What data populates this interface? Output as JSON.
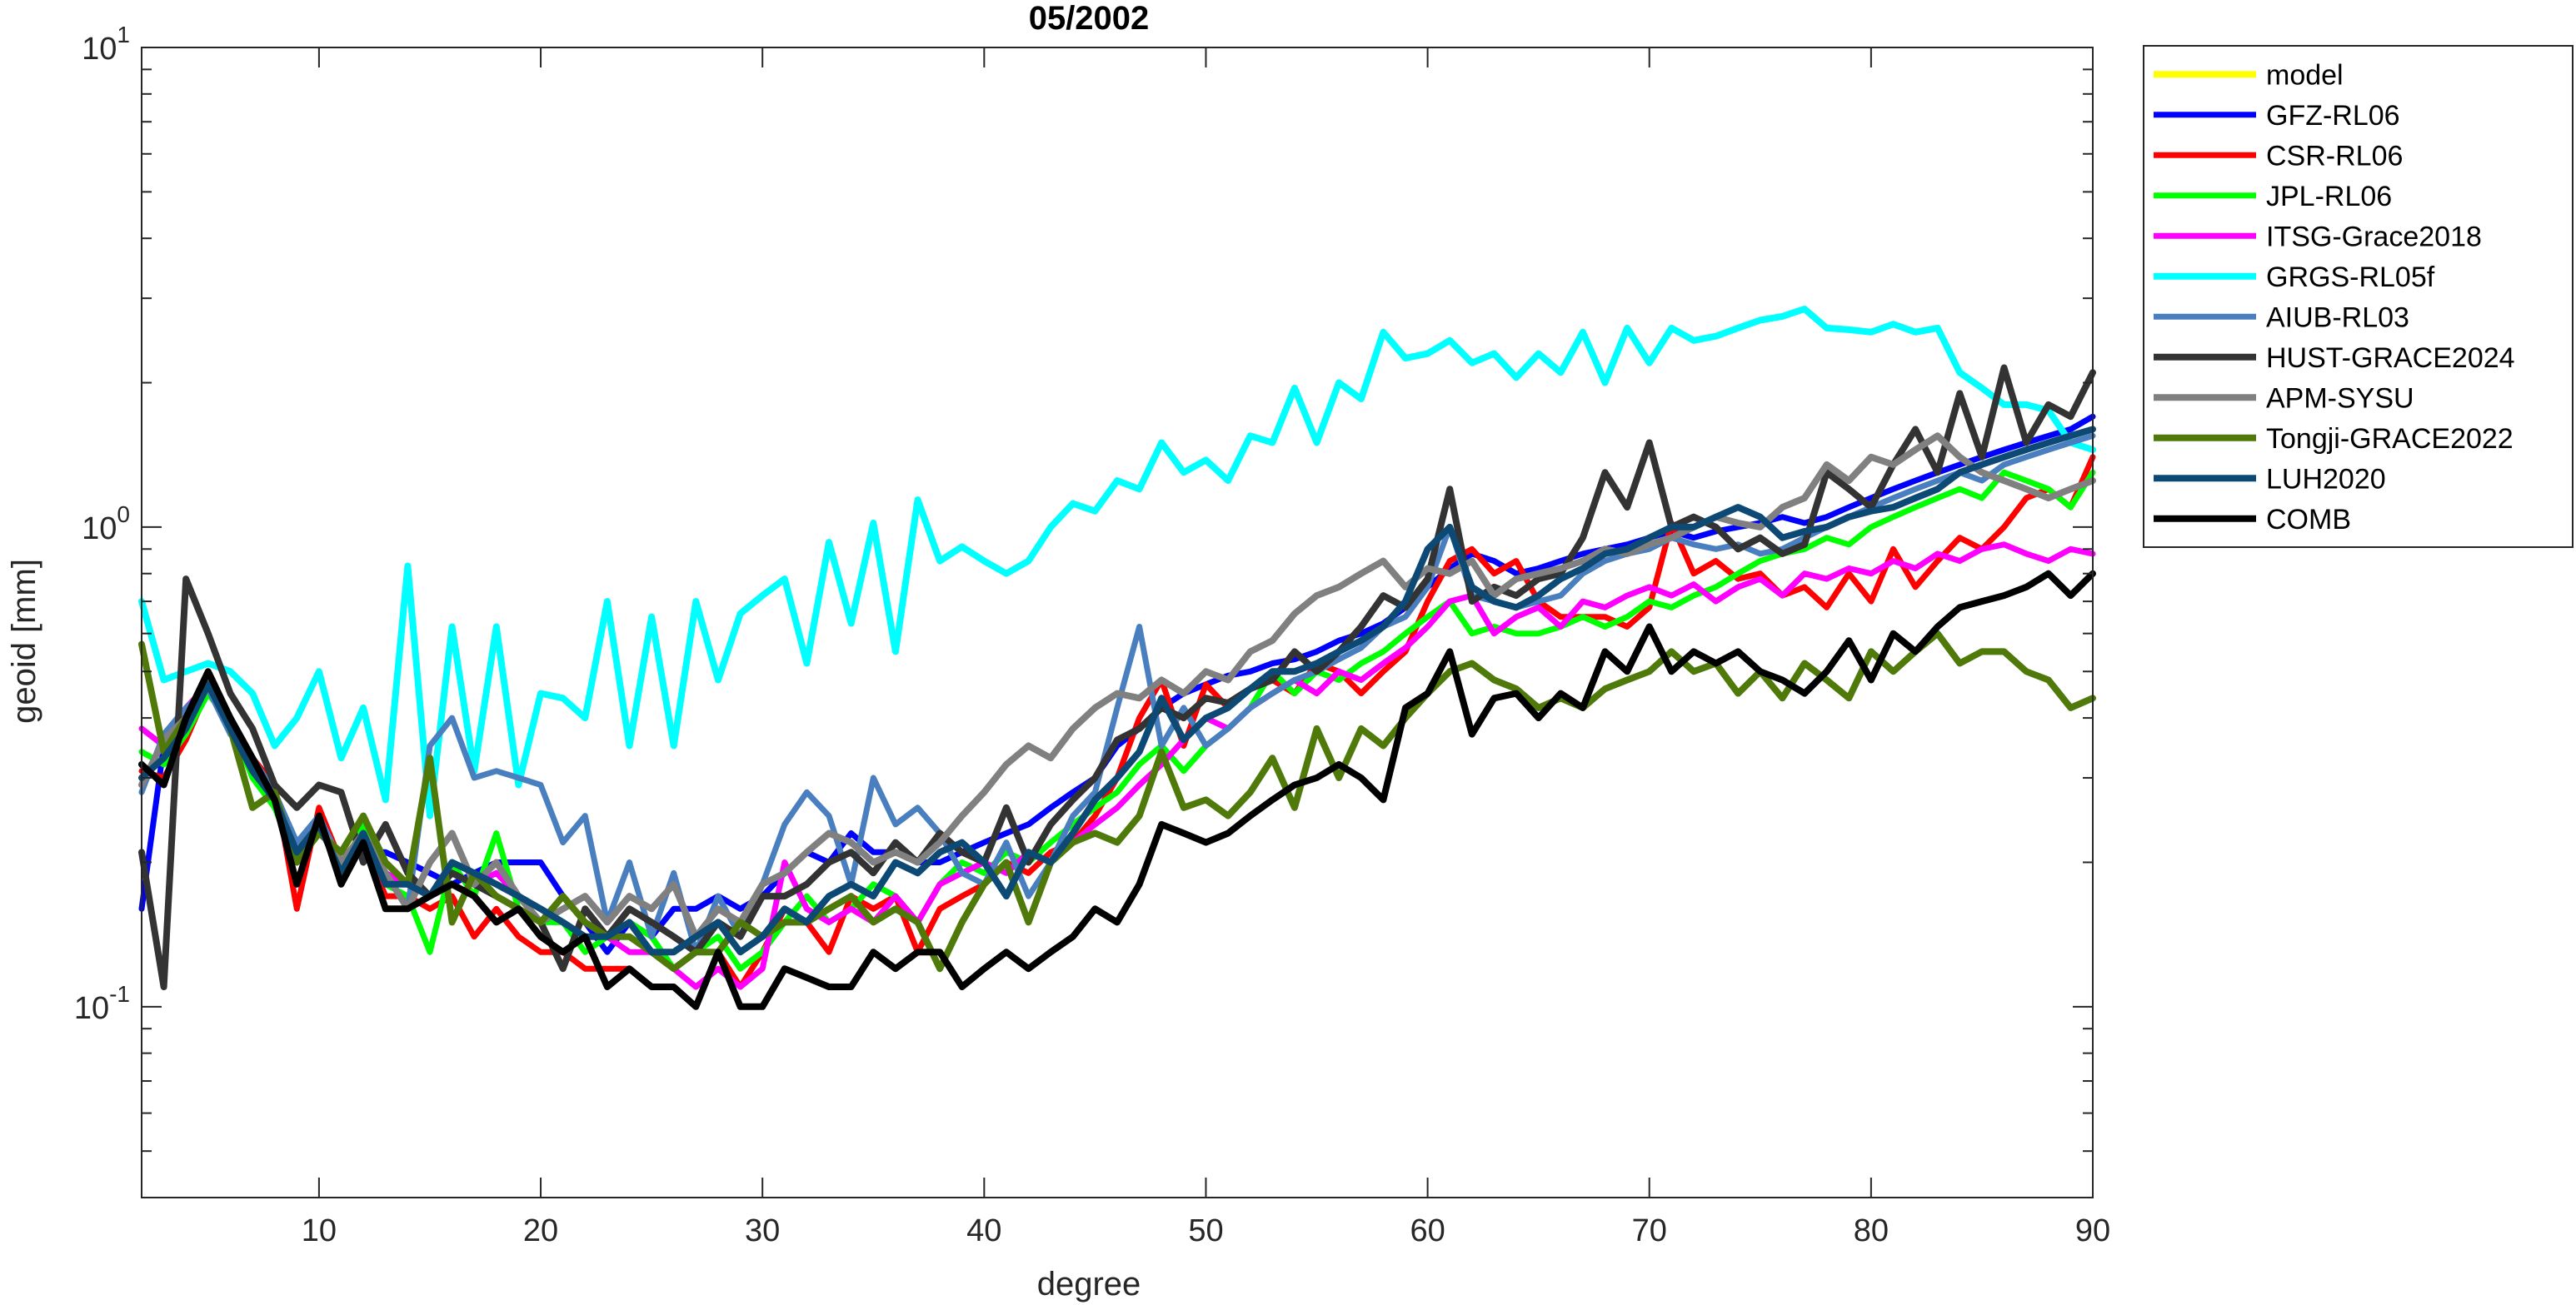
{
  "chart_data": {
    "type": "line",
    "title": "05/2002",
    "xlabel": "degree",
    "ylabel": "geoid [mm]",
    "xlim": [
      2,
      90
    ],
    "ylim": [
      0.04,
      10
    ],
    "yscale": "log",
    "xticks": [
      10,
      20,
      30,
      40,
      50,
      60,
      70,
      80,
      90
    ],
    "xtick_labels": [
      "10",
      "20",
      "30",
      "40",
      "50",
      "60",
      "70",
      "80",
      "90"
    ],
    "yticks": [
      {
        "value": 0.1,
        "base": "10",
        "exp": "-1"
      },
      {
        "value": 1,
        "base": "10",
        "exp": "0"
      },
      {
        "value": 10,
        "base": "10",
        "exp": "1"
      }
    ],
    "grid": false,
    "legend_position": "outside-top-right",
    "series": [
      {
        "name": "model",
        "color": "#ffff00",
        "width": 8,
        "x0": 2,
        "values": []
      },
      {
        "name": "GFZ-RL06",
        "color": "#0000ff",
        "width": 7,
        "x0": 2,
        "values": [
          0.16,
          0.35,
          0.38,
          0.49,
          0.4,
          0.33,
          0.28,
          0.2,
          0.24,
          0.2,
          0.21,
          0.21,
          0.2,
          0.19,
          0.18,
          0.19,
          0.2,
          0.2,
          0.2,
          0.17,
          0.15,
          0.13,
          0.15,
          0.14,
          0.16,
          0.16,
          0.17,
          0.16,
          0.17,
          0.19,
          0.21,
          0.2,
          0.23,
          0.21,
          0.21,
          0.2,
          0.2,
          0.21,
          0.22,
          0.23,
          0.24,
          0.26,
          0.28,
          0.3,
          0.35,
          0.38,
          0.42,
          0.45,
          0.47,
          0.49,
          0.5,
          0.52,
          0.53,
          0.55,
          0.58,
          0.6,
          0.63,
          0.68,
          0.75,
          0.82,
          0.88,
          0.85,
          0.8,
          0.82,
          0.85,
          0.88,
          0.9,
          0.92,
          0.95,
          0.98,
          0.95,
          0.98,
          1.0,
          1.02,
          1.05,
          1.02,
          1.05,
          1.1,
          1.15,
          1.2,
          1.25,
          1.3,
          1.35,
          1.4,
          1.45,
          1.5,
          1.55,
          1.6,
          1.7
        ]
      },
      {
        "name": "CSR-RL06",
        "color": "#ff0000",
        "width": 7,
        "x0": 2,
        "values": [
          0.31,
          0.3,
          0.36,
          0.46,
          0.38,
          0.33,
          0.29,
          0.16,
          0.26,
          0.2,
          0.22,
          0.17,
          0.17,
          0.16,
          0.17,
          0.14,
          0.16,
          0.14,
          0.13,
          0.13,
          0.12,
          0.12,
          0.12,
          0.11,
          0.11,
          0.1,
          0.13,
          0.11,
          0.13,
          0.16,
          0.15,
          0.13,
          0.17,
          0.16,
          0.17,
          0.13,
          0.16,
          0.17,
          0.18,
          0.2,
          0.19,
          0.21,
          0.22,
          0.25,
          0.3,
          0.4,
          0.48,
          0.35,
          0.47,
          0.42,
          0.46,
          0.48,
          0.45,
          0.52,
          0.5,
          0.45,
          0.5,
          0.55,
          0.7,
          0.85,
          0.9,
          0.8,
          0.85,
          0.7,
          0.65,
          0.65,
          0.65,
          0.62,
          0.68,
          1.02,
          0.8,
          0.85,
          0.78,
          0.8,
          0.72,
          0.75,
          0.68,
          0.8,
          0.7,
          0.9,
          0.75,
          0.85,
          0.95,
          0.9,
          1.0,
          1.15,
          1.2,
          1.1,
          1.4
        ]
      },
      {
        "name": "JPL-RL06",
        "color": "#00ff00",
        "width": 7,
        "x0": 2,
        "values": [
          0.34,
          0.32,
          0.37,
          0.45,
          0.39,
          0.3,
          0.26,
          0.2,
          0.25,
          0.19,
          0.24,
          0.18,
          0.17,
          0.13,
          0.2,
          0.17,
          0.23,
          0.16,
          0.15,
          0.15,
          0.13,
          0.14,
          0.15,
          0.14,
          0.12,
          0.13,
          0.14,
          0.12,
          0.13,
          0.15,
          0.17,
          0.15,
          0.16,
          0.18,
          0.17,
          0.15,
          0.18,
          0.2,
          0.19,
          0.21,
          0.2,
          0.22,
          0.24,
          0.26,
          0.28,
          0.32,
          0.35,
          0.31,
          0.35,
          0.38,
          0.42,
          0.5,
          0.45,
          0.5,
          0.48,
          0.52,
          0.55,
          0.6,
          0.65,
          0.7,
          0.6,
          0.62,
          0.6,
          0.6,
          0.62,
          0.65,
          0.62,
          0.65,
          0.7,
          0.68,
          0.72,
          0.75,
          0.8,
          0.85,
          0.88,
          0.9,
          0.95,
          0.92,
          1.0,
          1.05,
          1.1,
          1.15,
          1.2,
          1.15,
          1.3,
          1.25,
          1.2,
          1.1,
          1.3
        ]
      },
      {
        "name": "ITSG-Grace2018",
        "color": "#ff00ff",
        "width": 7,
        "x0": 2,
        "values": [
          0.38,
          0.35,
          0.42,
          0.47,
          0.4,
          0.33,
          0.27,
          0.21,
          0.24,
          0.2,
          0.22,
          0.19,
          0.18,
          0.17,
          0.19,
          0.18,
          0.19,
          0.17,
          0.16,
          0.15,
          0.14,
          0.14,
          0.13,
          0.13,
          0.12,
          0.11,
          0.12,
          0.11,
          0.12,
          0.2,
          0.16,
          0.15,
          0.16,
          0.15,
          0.17,
          0.15,
          0.18,
          0.19,
          0.2,
          0.19,
          0.21,
          0.2,
          0.22,
          0.24,
          0.26,
          0.29,
          0.32,
          0.36,
          0.4,
          0.38,
          0.42,
          0.45,
          0.48,
          0.45,
          0.5,
          0.48,
          0.52,
          0.56,
          0.62,
          0.7,
          0.72,
          0.6,
          0.65,
          0.68,
          0.62,
          0.7,
          0.68,
          0.72,
          0.75,
          0.72,
          0.76,
          0.7,
          0.75,
          0.78,
          0.72,
          0.8,
          0.78,
          0.82,
          0.8,
          0.85,
          0.82,
          0.88,
          0.85,
          0.9,
          0.92,
          0.88,
          0.85,
          0.9,
          0.88
        ]
      },
      {
        "name": "GRGS-RL05f",
        "color": "#00ffff",
        "width": 8,
        "x0": 2,
        "values": [
          0.7,
          0.48,
          0.5,
          0.52,
          0.5,
          0.45,
          0.35,
          0.4,
          0.5,
          0.33,
          0.42,
          0.27,
          0.83,
          0.25,
          0.62,
          0.31,
          0.62,
          0.29,
          0.45,
          0.44,
          0.4,
          0.7,
          0.35,
          0.65,
          0.35,
          0.7,
          0.48,
          0.66,
          0.72,
          0.78,
          0.52,
          0.93,
          0.63,
          1.02,
          0.55,
          1.14,
          0.85,
          0.91,
          0.85,
          0.8,
          0.85,
          1.0,
          1.12,
          1.08,
          1.25,
          1.2,
          1.5,
          1.3,
          1.38,
          1.25,
          1.55,
          1.5,
          1.95,
          1.5,
          2.0,
          1.85,
          2.55,
          2.25,
          2.3,
          2.45,
          2.2,
          2.3,
          2.05,
          2.3,
          2.1,
          2.55,
          2.0,
          2.6,
          2.2,
          2.6,
          2.45,
          2.5,
          2.6,
          2.7,
          2.75,
          2.85,
          2.6,
          2.58,
          2.55,
          2.65,
          2.55,
          2.6,
          2.1,
          1.95,
          1.8,
          1.8,
          1.75,
          1.5,
          1.45
        ]
      },
      {
        "name": "AIUB-RL03",
        "color": "#4a7fbf",
        "width": 7,
        "x0": 2,
        "values": [
          0.28,
          0.37,
          0.42,
          0.46,
          0.37,
          0.33,
          0.28,
          0.22,
          0.25,
          0.2,
          0.22,
          0.19,
          0.16,
          0.35,
          0.4,
          0.3,
          0.31,
          0.3,
          0.29,
          0.22,
          0.25,
          0.15,
          0.2,
          0.14,
          0.19,
          0.13,
          0.17,
          0.14,
          0.18,
          0.24,
          0.28,
          0.25,
          0.18,
          0.3,
          0.24,
          0.26,
          0.23,
          0.19,
          0.18,
          0.22,
          0.17,
          0.2,
          0.25,
          0.28,
          0.42,
          0.62,
          0.35,
          0.42,
          0.35,
          0.38,
          0.42,
          0.45,
          0.48,
          0.5,
          0.53,
          0.56,
          0.62,
          0.65,
          0.75,
          1.0,
          0.72,
          0.7,
          0.68,
          0.7,
          0.72,
          0.8,
          0.85,
          0.88,
          0.9,
          0.95,
          0.92,
          0.9,
          0.92,
          0.88,
          0.9,
          0.95,
          1.0,
          1.05,
          1.1,
          1.15,
          1.2,
          1.25,
          1.3,
          1.25,
          1.35,
          1.4,
          1.45,
          1.5,
          1.55
        ]
      },
      {
        "name": "HUST-GRACE2024",
        "color": "#333333",
        "width": 8,
        "x0": 2,
        "values": [
          0.21,
          0.11,
          0.78,
          0.6,
          0.45,
          0.38,
          0.29,
          0.26,
          0.29,
          0.28,
          0.2,
          0.24,
          0.19,
          0.17,
          0.19,
          0.18,
          0.17,
          0.16,
          0.15,
          0.12,
          0.16,
          0.14,
          0.16,
          0.15,
          0.14,
          0.13,
          0.15,
          0.14,
          0.17,
          0.17,
          0.18,
          0.2,
          0.21,
          0.19,
          0.22,
          0.2,
          0.23,
          0.21,
          0.2,
          0.26,
          0.2,
          0.24,
          0.27,
          0.3,
          0.36,
          0.38,
          0.42,
          0.4,
          0.44,
          0.43,
          0.46,
          0.48,
          0.55,
          0.5,
          0.55,
          0.62,
          0.72,
          0.68,
          0.78,
          1.2,
          0.7,
          0.75,
          0.72,
          0.78,
          0.8,
          0.95,
          1.3,
          1.1,
          1.5,
          1.0,
          1.05,
          1.0,
          0.9,
          0.95,
          0.88,
          0.92,
          1.3,
          1.2,
          1.1,
          1.35,
          1.6,
          1.3,
          1.9,
          1.4,
          2.15,
          1.5,
          1.8,
          1.7,
          2.1
        ]
      },
      {
        "name": "APM-SYSU",
        "color": "#808080",
        "width": 8,
        "x0": 2,
        "values": [
          0.29,
          0.36,
          0.4,
          0.47,
          0.38,
          0.32,
          0.27,
          0.21,
          0.24,
          0.2,
          0.23,
          0.19,
          0.16,
          0.2,
          0.23,
          0.18,
          0.2,
          0.17,
          0.15,
          0.16,
          0.17,
          0.15,
          0.17,
          0.16,
          0.18,
          0.14,
          0.16,
          0.15,
          0.18,
          0.19,
          0.21,
          0.23,
          0.22,
          0.2,
          0.21,
          0.2,
          0.22,
          0.25,
          0.28,
          0.32,
          0.35,
          0.33,
          0.38,
          0.42,
          0.45,
          0.44,
          0.48,
          0.45,
          0.5,
          0.48,
          0.55,
          0.58,
          0.66,
          0.72,
          0.75,
          0.8,
          0.85,
          0.75,
          0.82,
          0.8,
          0.85,
          0.72,
          0.78,
          0.8,
          0.82,
          0.85,
          0.9,
          0.88,
          0.92,
          0.95,
          1.0,
          1.05,
          1.02,
          1.0,
          1.1,
          1.15,
          1.35,
          1.25,
          1.4,
          1.35,
          1.45,
          1.55,
          1.4,
          1.3,
          1.25,
          1.2,
          1.15,
          1.2,
          1.25
        ]
      },
      {
        "name": "Tongji-GRACE2022",
        "color": "#4f7a0a",
        "width": 8,
        "x0": 2,
        "values": [
          0.57,
          0.34,
          0.4,
          0.48,
          0.38,
          0.26,
          0.28,
          0.2,
          0.23,
          0.21,
          0.25,
          0.2,
          0.18,
          0.33,
          0.15,
          0.19,
          0.17,
          0.16,
          0.15,
          0.17,
          0.15,
          0.14,
          0.14,
          0.13,
          0.12,
          0.13,
          0.13,
          0.15,
          0.14,
          0.15,
          0.15,
          0.16,
          0.17,
          0.15,
          0.16,
          0.15,
          0.12,
          0.15,
          0.18,
          0.2,
          0.15,
          0.2,
          0.22,
          0.23,
          0.22,
          0.25,
          0.34,
          0.26,
          0.27,
          0.25,
          0.28,
          0.33,
          0.26,
          0.38,
          0.3,
          0.38,
          0.35,
          0.4,
          0.45,
          0.5,
          0.52,
          0.48,
          0.46,
          0.42,
          0.44,
          0.42,
          0.46,
          0.48,
          0.5,
          0.55,
          0.5,
          0.52,
          0.45,
          0.5,
          0.44,
          0.52,
          0.48,
          0.44,
          0.55,
          0.5,
          0.55,
          0.6,
          0.52,
          0.55,
          0.55,
          0.5,
          0.48,
          0.42,
          0.44
        ]
      },
      {
        "name": "LUH2020",
        "color": "#0c4a75",
        "width": 8,
        "x0": 2,
        "values": [
          0.3,
          0.33,
          0.38,
          0.47,
          0.38,
          0.31,
          0.27,
          0.21,
          0.24,
          0.19,
          0.23,
          0.18,
          0.18,
          0.17,
          0.2,
          0.19,
          0.18,
          0.17,
          0.16,
          0.15,
          0.14,
          0.14,
          0.15,
          0.13,
          0.13,
          0.14,
          0.15,
          0.13,
          0.14,
          0.16,
          0.15,
          0.17,
          0.18,
          0.17,
          0.2,
          0.19,
          0.21,
          0.22,
          0.2,
          0.17,
          0.21,
          0.2,
          0.23,
          0.27,
          0.3,
          0.34,
          0.44,
          0.36,
          0.4,
          0.42,
          0.46,
          0.5,
          0.5,
          0.52,
          0.55,
          0.58,
          0.62,
          0.7,
          0.9,
          1.0,
          0.75,
          0.7,
          0.68,
          0.72,
          0.78,
          0.82,
          0.88,
          0.9,
          0.95,
          1.0,
          1.0,
          1.05,
          1.1,
          1.05,
          0.95,
          0.98,
          1.0,
          1.05,
          1.08,
          1.1,
          1.15,
          1.2,
          1.3,
          1.35,
          1.4,
          1.45,
          1.5,
          1.55,
          1.6
        ]
      },
      {
        "name": "COMB",
        "color": "#000000",
        "width": 8,
        "x0": 2,
        "values": [
          0.32,
          0.29,
          0.4,
          0.5,
          0.4,
          0.33,
          0.27,
          0.18,
          0.25,
          0.18,
          0.22,
          0.16,
          0.16,
          0.17,
          0.18,
          0.17,
          0.15,
          0.16,
          0.14,
          0.13,
          0.14,
          0.11,
          0.12,
          0.11,
          0.11,
          0.1,
          0.13,
          0.1,
          0.1,
          0.12,
          0.115,
          0.11,
          0.11,
          0.13,
          0.12,
          0.13,
          0.13,
          0.11,
          0.12,
          0.13,
          0.12,
          0.13,
          0.14,
          0.16,
          0.15,
          0.18,
          0.24,
          0.23,
          0.22,
          0.23,
          0.25,
          0.27,
          0.29,
          0.3,
          0.32,
          0.3,
          0.27,
          0.42,
          0.45,
          0.55,
          0.37,
          0.44,
          0.45,
          0.4,
          0.45,
          0.42,
          0.55,
          0.5,
          0.62,
          0.5,
          0.55,
          0.52,
          0.55,
          0.5,
          0.48,
          0.45,
          0.5,
          0.58,
          0.48,
          0.6,
          0.55,
          0.62,
          0.68,
          0.7,
          0.72,
          0.75,
          0.8,
          0.72,
          0.8
        ]
      }
    ]
  }
}
